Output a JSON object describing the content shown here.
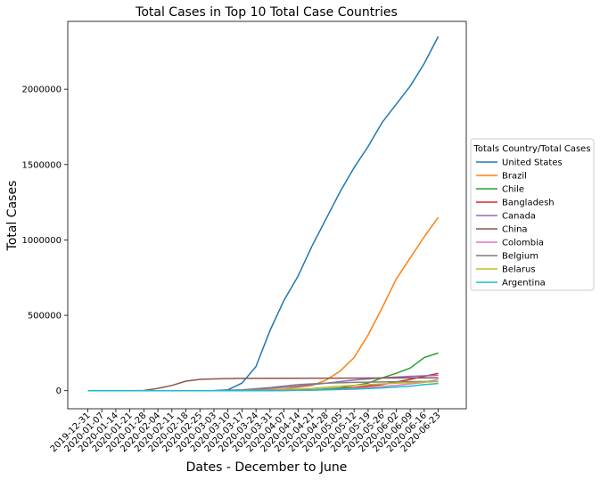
{
  "chart_data": {
    "type": "line",
    "title": "Total Cases in Top 10 Total Case Countries",
    "xlabel": "Dates - December to June",
    "ylabel": "Total Cases",
    "x_ticks": [
      "2019-12-31",
      "2020-01-07",
      "2020-01-14",
      "2020-01-21",
      "2020-01-28",
      "2020-02-04",
      "2020-02-11",
      "2020-02-18",
      "2020-02-25",
      "2020-03-03",
      "2020-03-10",
      "2020-03-17",
      "2020-03-24",
      "2020-03-31",
      "2020-04-07",
      "2020-04-14",
      "2020-04-21",
      "2020-04-28",
      "2020-05-05",
      "2020-05-12",
      "2020-05-19",
      "2020-05-26",
      "2020-06-02",
      "2020-06-09",
      "2020-06-16",
      "2020-06-23"
    ],
    "y_ticks": [
      0,
      500000,
      1000000,
      1500000,
      2000000
    ],
    "ylim": [
      -120000,
      2450000
    ],
    "grid": false,
    "legend": {
      "title": "Totals Country/Total Cases",
      "placement": "outside right"
    },
    "series": [
      {
        "name": "United States",
        "color": "#1f77b4",
        "x": [
          0,
          56,
          63,
          70,
          77,
          84,
          91,
          98,
          105,
          112,
          119,
          126,
          133,
          140,
          147,
          154,
          161,
          168,
          175
        ],
        "y": [
          0,
          0,
          500,
          6000,
          50000,
          160000,
          400000,
          600000,
          760000,
          960000,
          1140000,
          1320000,
          1480000,
          1620000,
          1780000,
          1900000,
          2020000,
          2170000,
          2350000
        ]
      },
      {
        "name": "Brazil",
        "color": "#ff7f0e",
        "x": [
          0,
          70,
          84,
          98,
          112,
          119,
          126,
          133,
          140,
          147,
          154,
          161,
          168,
          175
        ],
        "y": [
          0,
          0,
          2000,
          10000,
          35000,
          70000,
          130000,
          220000,
          370000,
          550000,
          740000,
          880000,
          1020000,
          1150000
        ]
      },
      {
        "name": "Chile",
        "color": "#2ca02c",
        "x": [
          0,
          70,
          91,
          112,
          126,
          140,
          147,
          154,
          161,
          168,
          175
        ],
        "y": [
          0,
          0,
          2000,
          6000,
          18000,
          50000,
          85000,
          115000,
          150000,
          220000,
          250000
        ]
      },
      {
        "name": "Bangladesh",
        "color": "#d62728",
        "x": [
          0,
          77,
          98,
          119,
          133,
          147,
          161,
          175
        ],
        "y": [
          0,
          0,
          1000,
          5000,
          20000,
          40000,
          75000,
          115000
        ]
      },
      {
        "name": "Canada",
        "color": "#9467bd",
        "x": [
          0,
          63,
          77,
          91,
          105,
          119,
          133,
          147,
          161,
          175
        ],
        "y": [
          0,
          0,
          2000,
          15000,
          30000,
          50000,
          70000,
          85000,
          95000,
          102000
        ]
      },
      {
        "name": "China",
        "color": "#8c564b",
        "x": [
          0,
          21,
          28,
          35,
          42,
          49,
          56,
          63,
          70,
          77,
          175
        ],
        "y": [
          0,
          0,
          1000,
          15000,
          35000,
          63000,
          75000,
          78000,
          80000,
          81500,
          85000
        ]
      },
      {
        "name": "Colombia",
        "color": "#e377c2",
        "x": [
          0,
          77,
          105,
          126,
          140,
          154,
          168,
          175
        ],
        "y": [
          0,
          0,
          3000,
          10000,
          20000,
          35000,
          55000,
          75000
        ]
      },
      {
        "name": "Belgium",
        "color": "#7f7f7f",
        "x": [
          0,
          63,
          77,
          91,
          105,
          119,
          133,
          147,
          161,
          175
        ],
        "y": [
          0,
          0,
          5000,
          20000,
          40000,
          50000,
          55000,
          58000,
          60000,
          61000
        ]
      },
      {
        "name": "Belarus",
        "color": "#bcbd22",
        "x": [
          0,
          77,
          98,
          112,
          126,
          140,
          154,
          175
        ],
        "y": [
          0,
          0,
          5000,
          15000,
          30000,
          40000,
          50000,
          60000
        ]
      },
      {
        "name": "Argentina",
        "color": "#17becf",
        "x": [
          0,
          77,
          98,
          119,
          133,
          147,
          161,
          168,
          175
        ],
        "y": [
          0,
          0,
          2000,
          5000,
          10000,
          18000,
          30000,
          40000,
          48000
        ]
      }
    ]
  }
}
